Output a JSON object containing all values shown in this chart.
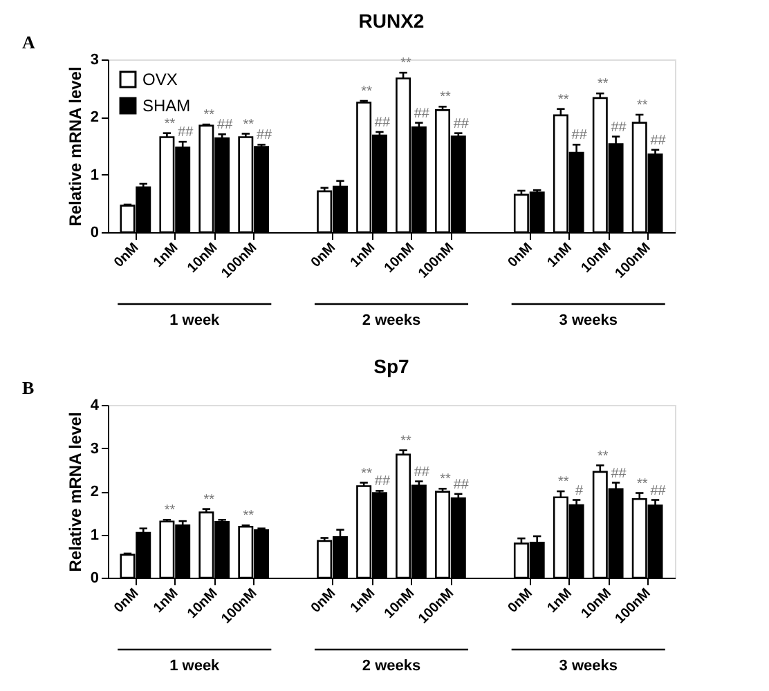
{
  "chart_data": [
    {
      "type": "bar",
      "title": "RUNX2",
      "ylabel": "Relative mRNA level",
      "categories": [
        "0nM",
        "1nM",
        "10nM",
        "100nM",
        "0nM",
        "1nM",
        "10nM",
        "100nM",
        "0nM",
        "1nM",
        "10nM",
        "100nM"
      ],
      "series": [
        {
          "name": "OVX",
          "color": "#ffffff",
          "values": [
            0.46,
            1.65,
            1.85,
            1.65,
            0.71,
            2.25,
            2.67,
            2.12,
            0.65,
            2.03,
            2.33,
            1.9
          ],
          "errors": [
            0.02,
            0.07,
            0.02,
            0.06,
            0.06,
            0.03,
            0.1,
            0.06,
            0.07,
            0.11,
            0.08,
            0.14
          ],
          "value_labels": [
            null,
            "**",
            "**",
            "**",
            null,
            "**",
            "**",
            "**",
            null,
            "**",
            "**",
            "**"
          ]
        },
        {
          "name": "SHAM",
          "color": "#000000",
          "values": [
            0.78,
            1.47,
            1.63,
            1.48,
            0.79,
            1.68,
            1.82,
            1.66,
            0.69,
            1.38,
            1.53,
            1.35
          ],
          "errors": [
            0.06,
            0.1,
            0.07,
            0.04,
            0.1,
            0.06,
            0.08,
            0.06,
            0.04,
            0.14,
            0.13,
            0.08
          ],
          "value_labels": [
            null,
            "##",
            "##",
            "##",
            null,
            "##",
            "##",
            "##",
            null,
            "##",
            "##",
            "##"
          ]
        }
      ],
      "ylim": [
        0,
        3
      ],
      "yticks": [
        0,
        1,
        2,
        3
      ],
      "grid": false,
      "legend": "top left",
      "annotations": [
        "A",
        "1  week",
        "2  weeks",
        "3  weeks"
      ]
    },
    {
      "type": "bar",
      "title": "Sp7",
      "ylabel": "Relative mRNA level",
      "categories": [
        "0nM",
        "1nM",
        "10nM",
        "100nM",
        "0nM",
        "1nM",
        "10nM",
        "100nM",
        "0nM",
        "1nM",
        "10nM",
        "100nM"
      ],
      "series": [
        {
          "name": "OVX",
          "color": "#ffffff",
          "values": [
            0.53,
            1.3,
            1.51,
            1.18,
            0.85,
            2.12,
            2.85,
            1.99,
            0.79,
            1.86,
            2.45,
            1.82
          ],
          "errors": [
            0.03,
            0.04,
            0.08,
            0.03,
            0.07,
            0.08,
            0.1,
            0.07,
            0.12,
            0.14,
            0.15,
            0.14
          ],
          "value_labels": [
            null,
            "**",
            "**",
            "**",
            null,
            "**",
            "**",
            "**",
            null,
            "**",
            "**",
            "**"
          ]
        },
        {
          "name": "SHAM",
          "color": "#000000",
          "values": [
            1.04,
            1.21,
            1.29,
            1.1,
            0.94,
            1.96,
            2.13,
            1.84,
            0.81,
            1.68,
            2.05,
            1.67
          ],
          "errors": [
            0.1,
            0.1,
            0.05,
            0.04,
            0.17,
            0.05,
            0.1,
            0.1,
            0.15,
            0.12,
            0.15,
            0.13
          ],
          "value_labels": [
            null,
            null,
            null,
            null,
            null,
            "##",
            "##",
            "##",
            null,
            "#",
            "##",
            "##"
          ]
        }
      ],
      "ylim": [
        0,
        4
      ],
      "yticks": [
        0,
        1,
        2,
        3,
        4
      ],
      "grid": false,
      "legend": false,
      "annotations": [
        "B",
        "1  week",
        "2  weeks",
        "3  weeks"
      ]
    }
  ]
}
